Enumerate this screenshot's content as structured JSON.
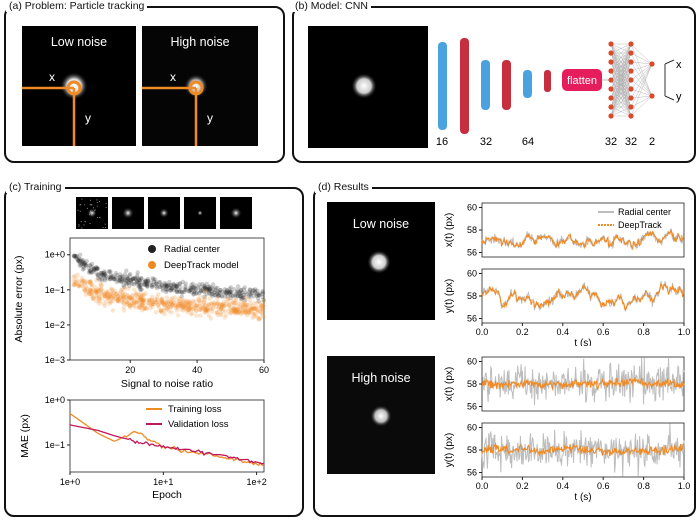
{
  "panels": {
    "a": {
      "title": "(a) Problem: Particle tracking",
      "low_label": "Low noise",
      "high_label": "High noise",
      "x_label": "x",
      "y_label": "y"
    },
    "b": {
      "title": "(b) Model: CNN",
      "flatten_label": "flatten",
      "layer_sizes": [
        "16",
        "32",
        "64",
        "32",
        "32",
        "2"
      ],
      "out_x": "x",
      "out_y": "y"
    },
    "c": {
      "title": "(c) Training"
    },
    "d": {
      "title": "(d) Results",
      "low_label": "Low noise",
      "high_label": "High noise"
    }
  },
  "chart_data": [
    {
      "id": "c-error",
      "type": "scatter",
      "xlabel": "Signal to noise ratio",
      "ylabel": "Absolute error (px)",
      "xlim": [
        2,
        60
      ],
      "ylim": [
        0.001,
        3
      ],
      "yscale": "log",
      "xticks": [
        "20",
        "40",
        "60"
      ],
      "yticks": [
        "1e+0",
        "1e−1",
        "1e−2",
        "1e−3"
      ],
      "legend": "top-right",
      "series": [
        {
          "name": "Radial center",
          "color": "#222222",
          "trend": [
            [
              3,
              0.9
            ],
            [
              10,
              0.32
            ],
            [
              20,
              0.18
            ],
            [
              30,
              0.13
            ],
            [
              40,
              0.1
            ],
            [
              50,
              0.085
            ],
            [
              60,
              0.075
            ]
          ],
          "spread": 1.8
        },
        {
          "name": "DeepTrack model",
          "color": "#f08a24",
          "trend": [
            [
              3,
              0.2
            ],
            [
              10,
              0.08
            ],
            [
              20,
              0.05
            ],
            [
              30,
              0.04
            ],
            [
              40,
              0.035
            ],
            [
              50,
              0.03
            ],
            [
              60,
              0.028
            ]
          ],
          "spread": 2.5
        }
      ]
    },
    {
      "id": "c-loss",
      "type": "line",
      "xlabel": "Epoch",
      "ylabel": "MAE (px)",
      "xscale": "log",
      "yscale": "log",
      "xlim": [
        1,
        120
      ],
      "ylim": [
        0.025,
        1
      ],
      "xticks": [
        "1e+0",
        "1e+1",
        "1e+2"
      ],
      "yticks": [
        "1e+0",
        "1e−1"
      ],
      "legend": "top-right",
      "series": [
        {
          "name": "Training loss",
          "color": "#f08a24",
          "x": [
            1,
            2,
            3,
            5,
            10,
            20,
            50,
            120
          ],
          "y": [
            0.5,
            0.18,
            0.12,
            0.2,
            0.09,
            0.07,
            0.05,
            0.035
          ]
        },
        {
          "name": "Validation loss",
          "color": "#c2185b",
          "x": [
            1,
            2,
            3,
            5,
            10,
            20,
            50,
            120
          ],
          "y": [
            0.28,
            0.21,
            0.16,
            0.12,
            0.09,
            0.075,
            0.055,
            0.038
          ]
        }
      ]
    },
    {
      "id": "d-low-x",
      "type": "line",
      "ylabel": "x(t) (px)",
      "xlim": [
        0,
        1
      ],
      "ylim": [
        55.6,
        60.4
      ],
      "yticks": [
        "60",
        "58",
        "56"
      ],
      "legend": "top-right",
      "series": [
        {
          "name": "Radial center",
          "color": "#bdbdbd",
          "base": 57.0,
          "amp": 0.9,
          "noise": 0.3
        },
        {
          "name": "DeepTrack",
          "color": "#f08a24",
          "base": 57.0,
          "amp": 0.9,
          "noise": 0.15
        }
      ]
    },
    {
      "id": "d-low-y",
      "type": "line",
      "ylabel": "y(t) (px)",
      "xlim": [
        0,
        1
      ],
      "ylim": [
        55.6,
        60.4
      ],
      "yticks": [
        "60",
        "58",
        "56"
      ],
      "xticks": [
        "0.0",
        "0.2",
        "0.4",
        "0.6",
        "0.8",
        "1.0"
      ],
      "xlabel": "t (s)",
      "series": [
        {
          "name": "Radial center",
          "color": "#bdbdbd",
          "base": 58.0,
          "amp": 1.2,
          "noise": 0.3
        },
        {
          "name": "DeepTrack",
          "color": "#f08a24",
          "base": 58.0,
          "amp": 1.2,
          "noise": 0.15
        }
      ]
    },
    {
      "id": "d-high-x",
      "type": "line",
      "ylabel": "x(t) (px)",
      "xlim": [
        0,
        1
      ],
      "ylim": [
        55.6,
        60.4
      ],
      "yticks": [
        "60",
        "58",
        "56"
      ],
      "series": [
        {
          "name": "Radial center",
          "color": "#bdbdbd",
          "base": 58.0,
          "amp": 0.3,
          "noise": 1.4
        },
        {
          "name": "DeepTrack",
          "color": "#f08a24",
          "base": 58.0,
          "amp": 0.3,
          "noise": 0.3
        }
      ]
    },
    {
      "id": "d-high-y",
      "type": "line",
      "ylabel": "y(t) (px)",
      "xlim": [
        0,
        1
      ],
      "ylim": [
        55.6,
        60.4
      ],
      "yticks": [
        "60",
        "58",
        "56"
      ],
      "xticks": [
        "0.0",
        "0.2",
        "0.4",
        "0.6",
        "0.8",
        "1.0"
      ],
      "xlabel": "t (s)",
      "series": [
        {
          "name": "Radial center",
          "color": "#bdbdbd",
          "base": 58.0,
          "amp": 0.3,
          "noise": 1.4
        },
        {
          "name": "DeepTrack",
          "color": "#f08a24",
          "base": 58.0,
          "amp": 0.3,
          "noise": 0.3
        }
      ]
    }
  ]
}
